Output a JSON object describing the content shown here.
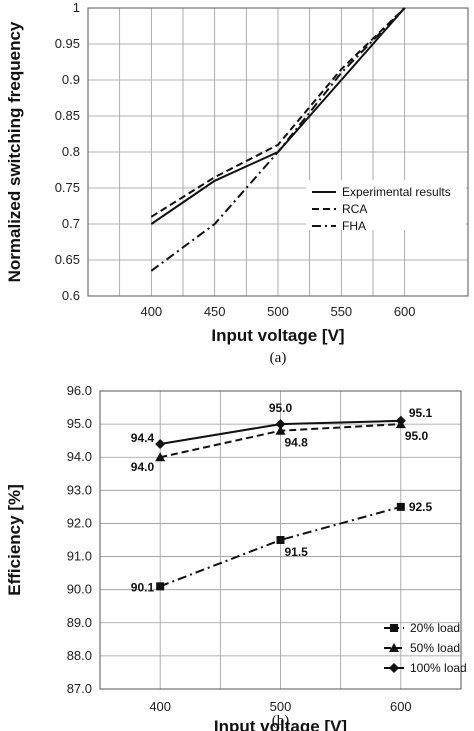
{
  "chart_data": [
    {
      "type": "line",
      "title": "",
      "caption": "(a)",
      "xlabel": "Input voltage [V]",
      "ylabel": "Normalized switching frequency",
      "x": [
        400,
        450,
        500,
        550,
        600
      ],
      "xlim": [
        350,
        650
      ],
      "ylim": [
        0.6,
        1.0
      ],
      "xticks": [
        "400",
        "450",
        "500",
        "550",
        "600"
      ],
      "yticks": [
        "0.6",
        "0.65",
        "0.7",
        "0.75",
        "0.8",
        "0.85",
        "0.9",
        "0.95",
        "1"
      ],
      "grid": true,
      "legend_position": "lower-right",
      "series": [
        {
          "name": "Experimental results",
          "dash": "solid",
          "values": [
            0.7,
            0.76,
            0.8,
            0.9,
            1.0
          ]
        },
        {
          "name": "RCA",
          "dash": "dashed",
          "values": [
            0.71,
            0.765,
            0.81,
            0.915,
            1.0
          ]
        },
        {
          "name": "FHA",
          "dash": "dashdot",
          "values": [
            0.635,
            0.7,
            0.8,
            0.91,
            1.0
          ]
        }
      ]
    },
    {
      "type": "line",
      "title": "",
      "caption": "(b)",
      "xlabel": "Input voltage [V]",
      "ylabel": "Efficiency [%]",
      "x": [
        400,
        500,
        600
      ],
      "xlim": [
        350,
        650
      ],
      "ylim": [
        87.0,
        96.0
      ],
      "xticks": [
        "400",
        "500",
        "600"
      ],
      "yticks": [
        "87.0",
        "88.0",
        "89.0",
        "90.0",
        "91.0",
        "92.0",
        "93.0",
        "94.0",
        "95.0",
        "96.0"
      ],
      "grid": true,
      "legend_position": "lower-right",
      "series": [
        {
          "name": "20% load",
          "dash": "dashdot",
          "marker": "square",
          "values": [
            90.1,
            91.5,
            92.5
          ],
          "labels": [
            "90.1",
            "91.5",
            "92.5"
          ]
        },
        {
          "name": "50% load",
          "dash": "dashed",
          "marker": "triangle",
          "values": [
            94.0,
            94.8,
            95.0
          ],
          "labels": [
            "94.0",
            "94.8",
            "95.0"
          ]
        },
        {
          "name": "100% load",
          "dash": "solid",
          "marker": "diamond",
          "values": [
            94.4,
            95.0,
            95.1
          ],
          "labels": [
            "94.4",
            "95.0",
            "95.1"
          ]
        }
      ]
    }
  ]
}
